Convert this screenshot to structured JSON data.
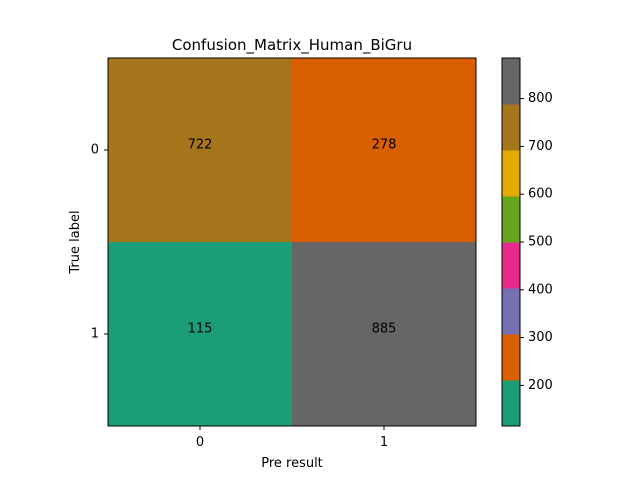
{
  "chart_data": {
    "type": "heatmap",
    "title": "Confusion_Matrix_Human_BiGru",
    "xlabel": "Pre result",
    "ylabel": "True label",
    "x_categories": [
      "0",
      "1"
    ],
    "y_categories": [
      "0",
      "1"
    ],
    "values": [
      [
        722,
        278
      ],
      [
        115,
        885
      ]
    ],
    "colormap": {
      "name": "Dark2",
      "range": [
        115,
        885
      ],
      "colors": [
        "#1b9e77",
        "#d95f02",
        "#7570b3",
        "#e7298a",
        "#66a61e",
        "#e6ab02",
        "#a6761d",
        "#666666"
      ],
      "ticks": [
        200,
        300,
        400,
        500,
        600,
        700,
        800
      ]
    },
    "grid": false
  }
}
